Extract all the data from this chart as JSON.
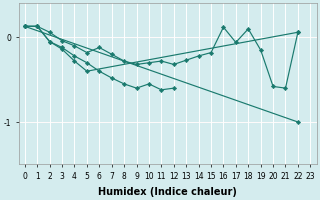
{
  "xlabel": "Humidex (Indice chaleur)",
  "bg_color": "#d4ecee",
  "grid_color": "#ffffff",
  "line_color": "#1a7a6e",
  "xlim": [
    -0.5,
    23.5
  ],
  "ylim": [
    -1.5,
    0.4
  ],
  "yticks": [
    -1,
    0
  ],
  "xtick_labels": [
    "0",
    "1",
    "2",
    "3",
    "4",
    "5",
    "6",
    "7",
    "8",
    "9",
    "10",
    "11",
    "12",
    "13",
    "14",
    "15",
    "16",
    "17",
    "18",
    "19",
    "20",
    "21",
    "22",
    "23"
  ],
  "xtick_vals": [
    0,
    1,
    2,
    3,
    4,
    5,
    6,
    7,
    8,
    9,
    10,
    11,
    12,
    13,
    14,
    15,
    16,
    17,
    18,
    19,
    20,
    21,
    22,
    23
  ],
  "series": [
    {
      "x": [
        0,
        1,
        2,
        3,
        4,
        5,
        6,
        7,
        8,
        9,
        10,
        11,
        12,
        13,
        14,
        15,
        16,
        17,
        18,
        19,
        20,
        21,
        22
      ],
      "y": [
        0.13,
        0.13,
        0.06,
        -0.04,
        -0.1,
        -0.18,
        -0.12,
        -0.2,
        -0.28,
        -0.32,
        -0.3,
        -0.28,
        -0.32,
        -0.27,
        -0.22,
        -0.18,
        0.12,
        -0.06,
        0.1,
        -0.15,
        -0.58,
        -0.6,
        0.06
      ]
    },
    {
      "x": [
        0,
        1,
        2,
        3,
        4,
        5,
        6,
        7,
        8,
        9,
        10,
        11,
        12
      ],
      "y": [
        0.13,
        0.13,
        -0.05,
        -0.12,
        -0.22,
        -0.3,
        -0.4,
        -0.48,
        -0.55,
        -0.6,
        -0.55,
        -0.62,
        -0.6
      ]
    },
    {
      "x": [
        0,
        1,
        2,
        3,
        4,
        5,
        22
      ],
      "y": [
        0.13,
        0.13,
        -0.05,
        -0.14,
        -0.28,
        -0.4,
        0.06
      ]
    },
    {
      "x": [
        0,
        22
      ],
      "y": [
        0.13,
        -1.0
      ]
    }
  ]
}
